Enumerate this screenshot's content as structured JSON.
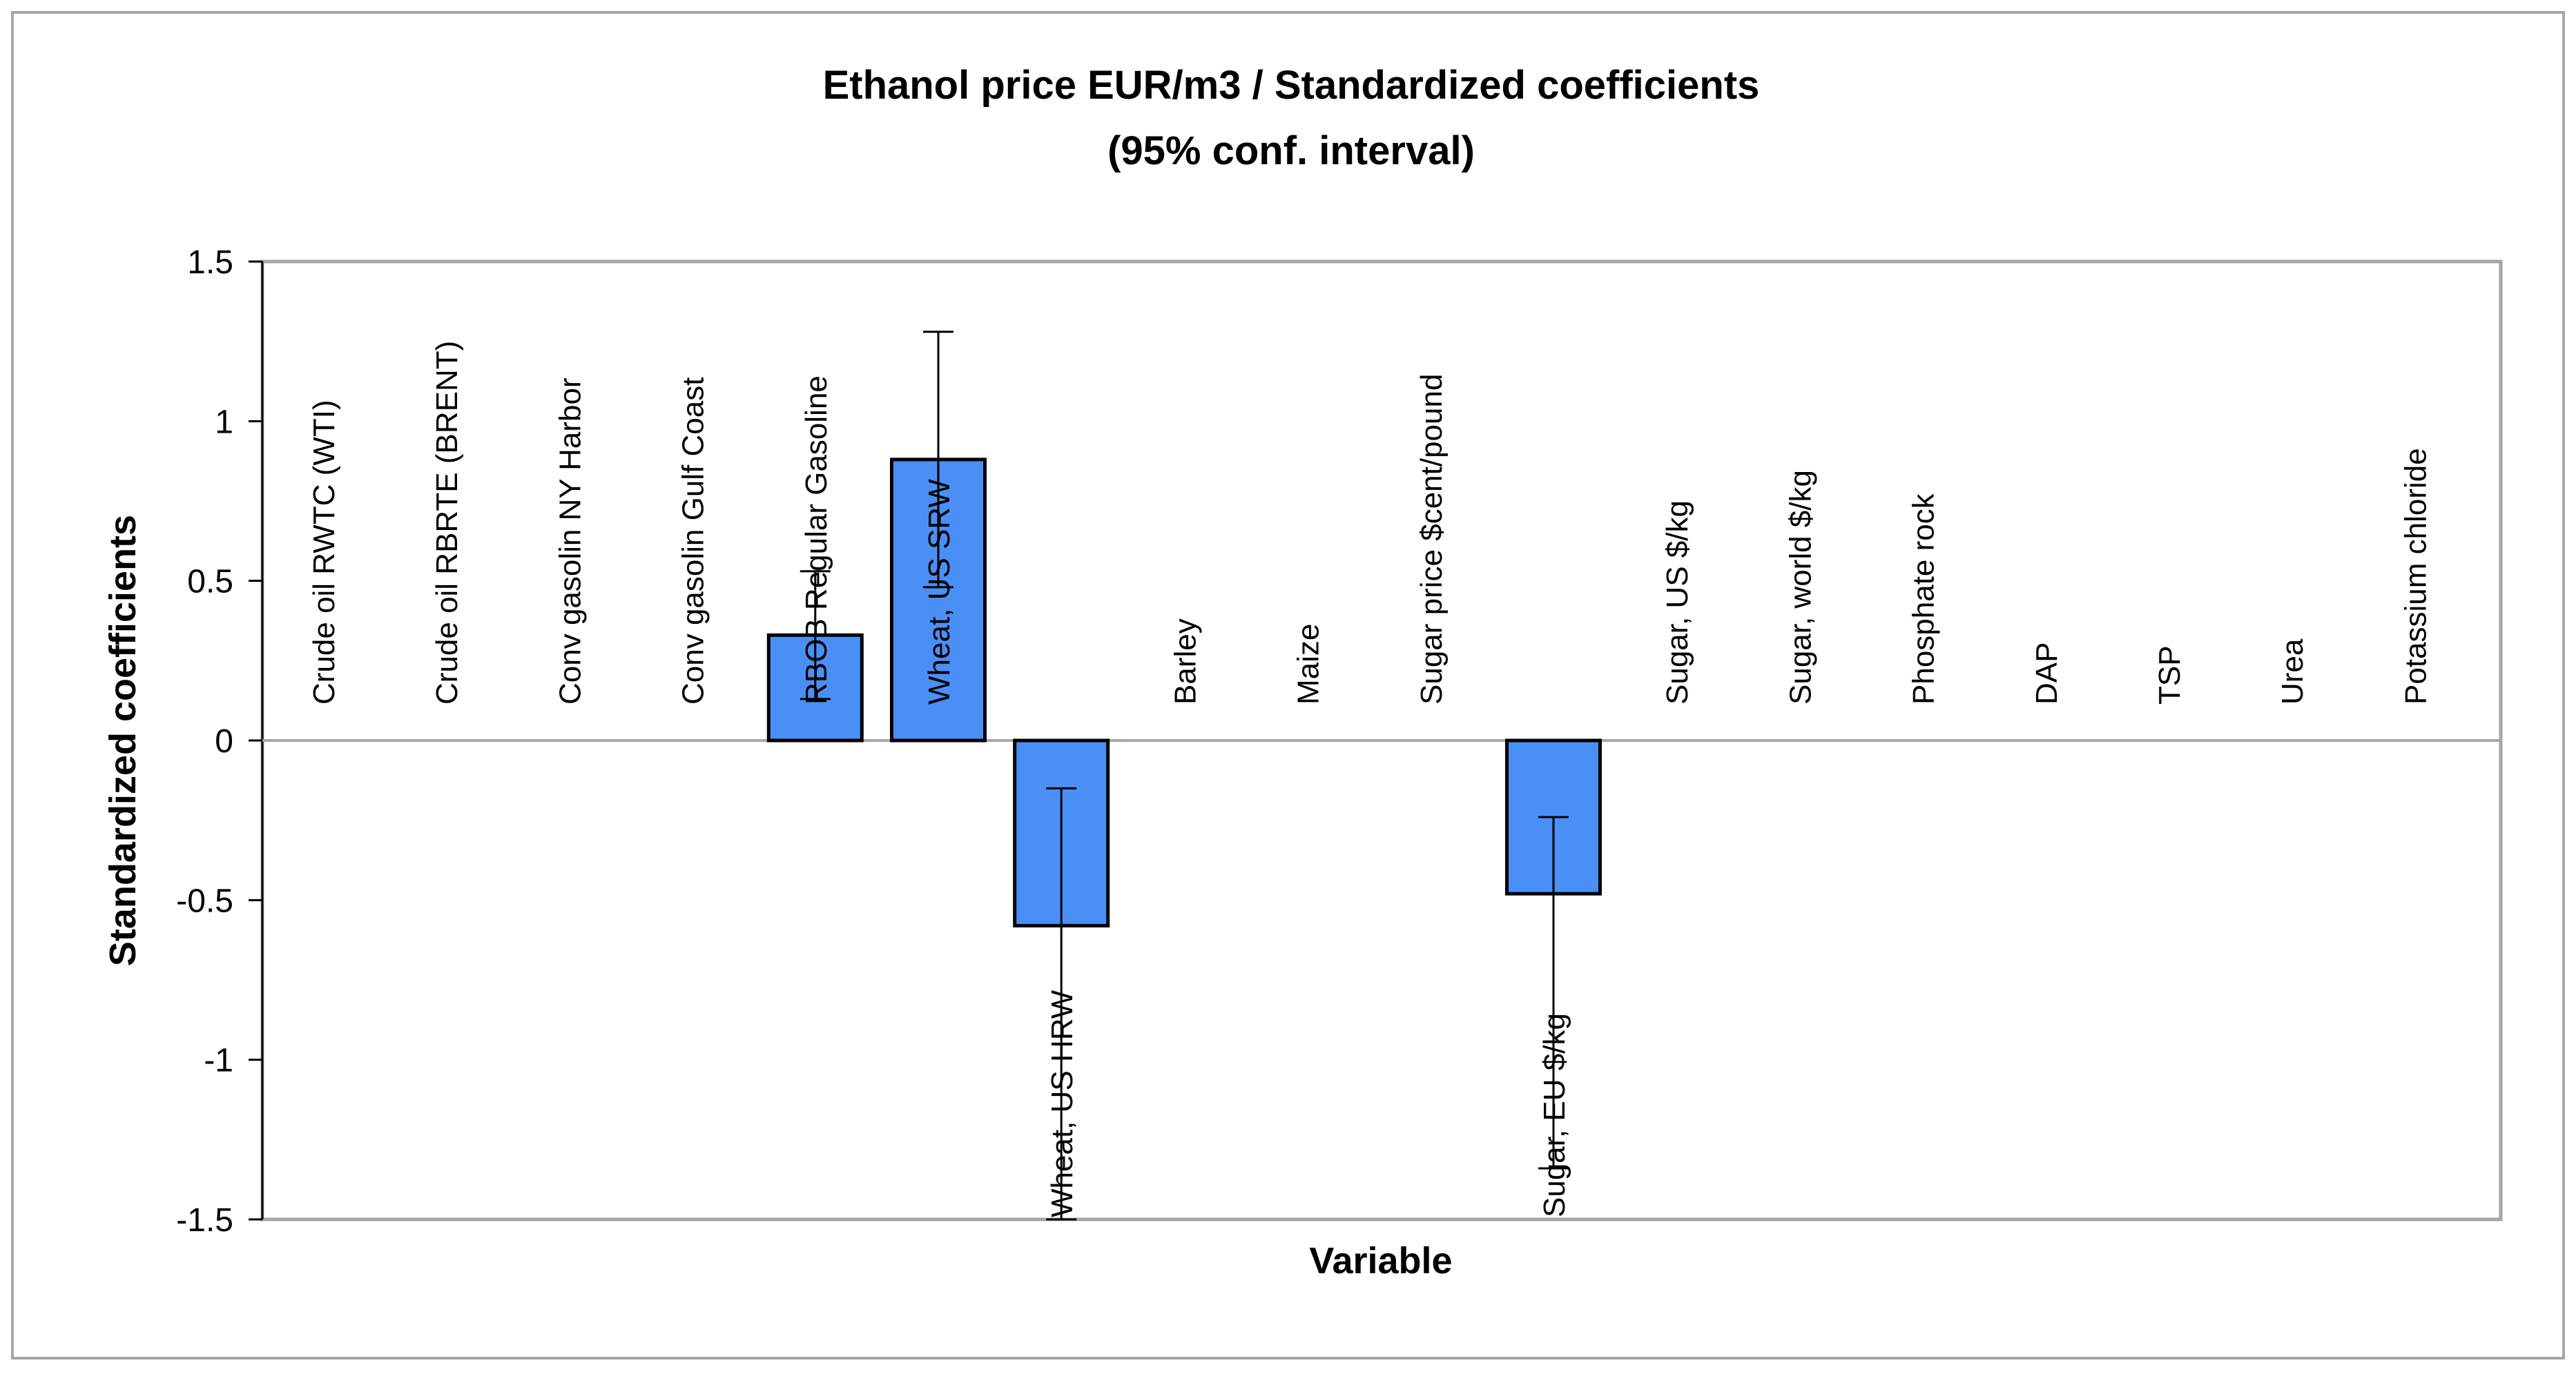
{
  "chart_data": {
    "type": "bar",
    "title_lines": [
      "Ethanol price EUR/m3 / Standardized coefficients",
      "(95% conf. interval)"
    ],
    "xlabel": "Variable",
    "ylabel": "Standardized coefficients",
    "ylim": [
      -1.5,
      1.5
    ],
    "yticks": [
      1.5,
      1,
      0.5,
      0,
      -0.5,
      -1,
      -1.5
    ],
    "ytick_labels": [
      "1.5",
      "1",
      "0.5",
      "0",
      "-0.5",
      "-1",
      "-1.5"
    ],
    "categories": [
      "Crude oil RWTC (WTI)",
      "Crude oil RBRTE (BRENT)",
      "Conv gasolin NY Harbor",
      "Conv gasolin Gulf Coast",
      "RBOB Regular Gasoline",
      "Wheat, US SRW",
      "Wheat, US HRW",
      "Barley",
      "Maize",
      "Sugar price $cent/pound",
      "Sugar, EU $/kg",
      "Sugar, US $/kg",
      "Sugar, world $/kg",
      "Phosphate rock",
      "DAP",
      "TSP",
      "Urea",
      "Potassium chloride"
    ],
    "values": [
      0,
      0,
      0,
      0,
      0.33,
      0.88,
      -0.58,
      0,
      0,
      0,
      -0.48,
      0,
      0,
      0,
      0,
      0,
      0,
      0
    ],
    "ci_low": [
      null,
      null,
      null,
      null,
      0.13,
      0.48,
      -1.5,
      null,
      null,
      null,
      -1.34,
      null,
      null,
      null,
      null,
      null,
      null,
      null
    ],
    "ci_high": [
      null,
      null,
      null,
      null,
      0.53,
      1.28,
      -0.15,
      null,
      null,
      null,
      -0.24,
      null,
      null,
      null,
      null,
      null,
      null,
      null
    ],
    "grid": false,
    "legend": "none",
    "colors": {
      "bar_fill": "#4a8ff5",
      "bar_stroke": "#000000",
      "plot_border": "#a6a6a6",
      "zero_line": "#a6a6a6",
      "outer_border": "#a6a6a6"
    }
  }
}
